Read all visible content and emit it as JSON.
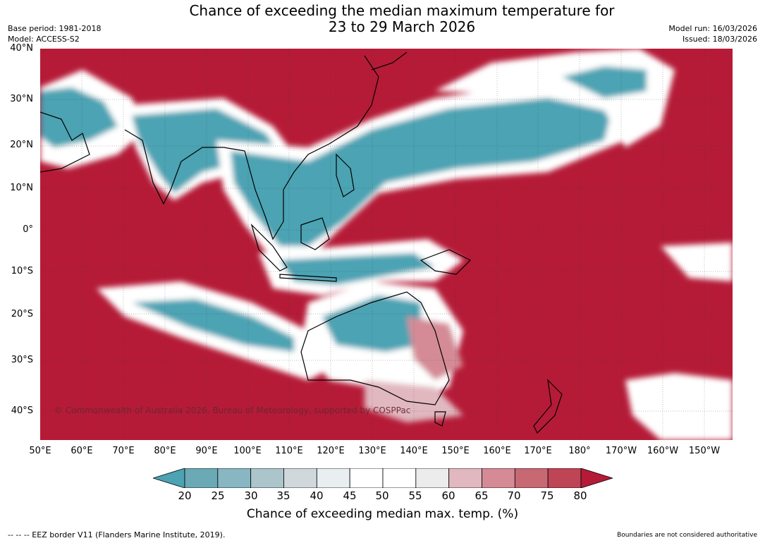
{
  "title_line1": "Chance of exceeding the median maximum temperature for",
  "title_line2": "23 to 29 March 2026",
  "base_period": "Base period: 1981-2018",
  "model": "Model: ACCESS-S2",
  "model_run": "Model run: 16/03/2026",
  "issued": "Issued: 18/03/2026",
  "copyright": "© Commonwealth of Australia 2026, Bureau of Meteorology, supported by COSPPac",
  "lat_labels": [
    "40°N",
    "30°N",
    "20°N",
    "10°N",
    "0°",
    "10°S",
    "20°S",
    "30°S",
    "40°S"
  ],
  "lon_labels": [
    "50°E",
    "60°E",
    "70°E",
    "80°E",
    "90°E",
    "100°E",
    "110°E",
    "120°E",
    "130°E",
    "140°E",
    "150°E",
    "160°E",
    "170°E",
    "180°",
    "170°W",
    "160°W",
    "150°W"
  ],
  "colorbar": {
    "ticks": [
      "20",
      "25",
      "30",
      "35",
      "40",
      "45",
      "50",
      "55",
      "60",
      "65",
      "70",
      "75",
      "80"
    ],
    "label": "Chance of exceeding median max. temp. (%)",
    "colors": [
      "#4ba3b3",
      "#6aa9b5",
      "#88b6c3",
      "#abc5cb",
      "#d1d8dc",
      "#e9eef1",
      "#ffffff",
      "#ffffff",
      "#ececed",
      "#e1b8bf",
      "#d48b96",
      "#c76873",
      "#bd4555",
      "#b51b37"
    ]
  },
  "footer_left": "--  --  -- EEZ border V11 (Flanders Marine Institute, 2019).",
  "footer_right": "Boundaries are not considered authoritative",
  "colors": {
    "hot": "#b51b37",
    "cool": "#4ba3b3",
    "neutral": "#ffffff"
  }
}
